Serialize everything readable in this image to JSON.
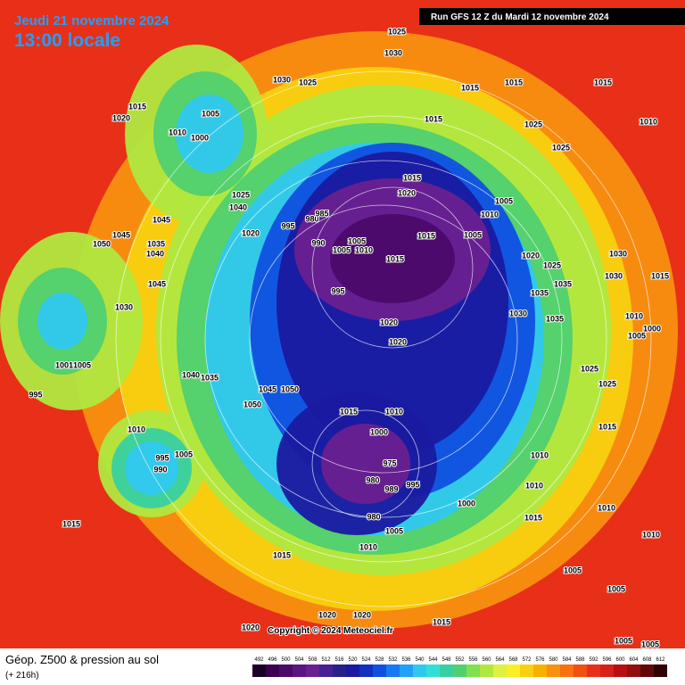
{
  "header": {
    "date": "Jeudi 21 novembre 2024",
    "time": "13:00 locale",
    "run": "Run GFS 12 Z du Mardi 12 novembre 2024"
  },
  "footer": {
    "title": "Géop. Z500 & pression au sol",
    "lead": "(+ 216h)",
    "copyright": "Copyright © 2024 Meteociel.fr"
  },
  "legend": {
    "values": [
      492,
      496,
      500,
      504,
      508,
      512,
      516,
      520,
      524,
      528,
      532,
      536,
      540,
      544,
      548,
      552,
      556,
      560,
      564,
      568,
      572,
      576,
      580,
      584,
      588,
      592,
      596,
      600,
      604,
      608,
      612
    ],
    "colors": [
      "#1a0026",
      "#3a0050",
      "#4a0a6a",
      "#5c1480",
      "#6a2090",
      "#442090",
      "#28208a",
      "#1a1aa0",
      "#1030c0",
      "#1050e0",
      "#1878f0",
      "#20a0f8",
      "#30c8f0",
      "#30e0d8",
      "#38d0a0",
      "#50d070",
      "#80e050",
      "#b0e840",
      "#e0f040",
      "#f8f020",
      "#f8d010",
      "#f8b000",
      "#f89010",
      "#f87010",
      "#f05010",
      "#e83018",
      "#d82018",
      "#b81010",
      "#901010",
      "#600808",
      "#300000"
    ]
  },
  "pressure_labels": [
    1025,
    1030,
    1030,
    1025,
    1015,
    1015,
    1015,
    1010,
    1015,
    1020,
    1005,
    1010,
    1000,
    1015,
    1025,
    1025,
    1015,
    1020,
    1005,
    1010,
    1025,
    1040,
    1045,
    1020,
    995,
    980,
    985,
    990,
    1005,
    1005,
    1010,
    1005,
    1015,
    1015,
    1020,
    1025,
    1030,
    1030,
    1015,
    995,
    1035,
    1035,
    1030,
    1035,
    1010,
    1005,
    1000,
    1020,
    1020,
    1050,
    1045,
    1035,
    1040,
    1045,
    1030,
    1005,
    1001,
    995,
    1040,
    1035,
    1045,
    1050,
    1050,
    1015,
    1010,
    1025,
    1025,
    1015,
    1000,
    1010,
    995,
    1005,
    990,
    975,
    980,
    989,
    995,
    1010,
    1010,
    1000,
    980,
    1015,
    1005,
    1010,
    1015,
    1015,
    1010,
    1010,
    1005,
    1005,
    1020,
    1020,
    1015,
    1020,
    1005,
    1005
  ]
}
